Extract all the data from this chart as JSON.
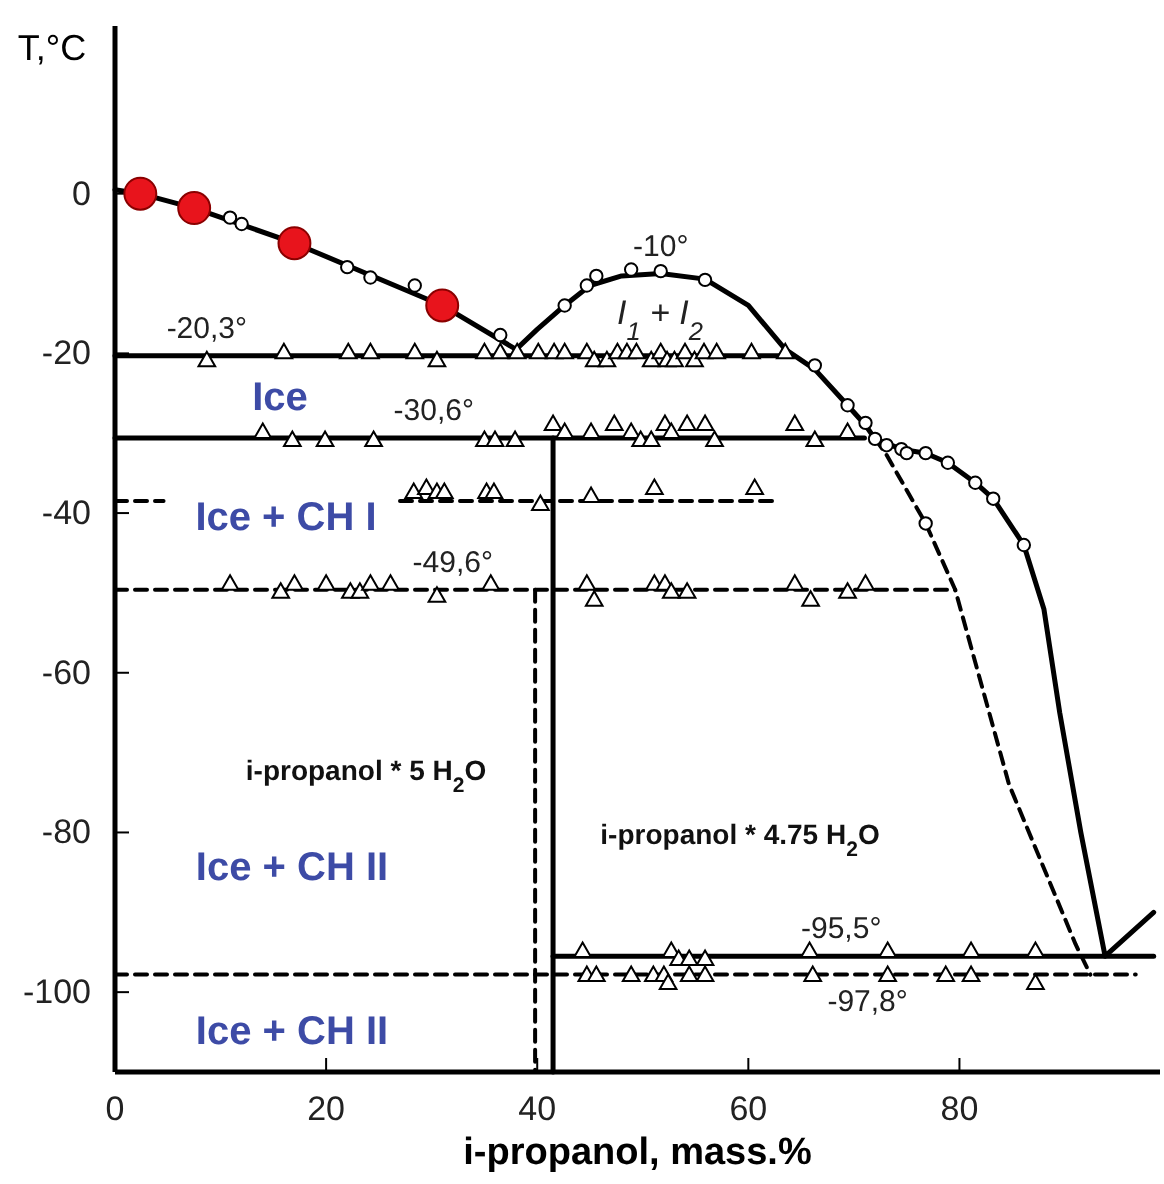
{
  "chart_data": {
    "type": "line",
    "xlabel": "i-propanol, mass.%",
    "ylabel": "T,°C",
    "xlim": [
      0,
      99
    ],
    "ylim": [
      -110,
      21
    ],
    "xticks": [
      0,
      20,
      40,
      60,
      80
    ],
    "yticks": [
      0,
      -20,
      -40,
      -60,
      -80,
      -100
    ],
    "grid": false,
    "series": [
      {
        "color": "#000000",
        "line_style": "solid",
        "x": [
          0,
          2.4,
          7.5,
          17,
          31,
          38
        ],
        "values": [
          0.5,
          0,
          -1.8,
          -6.2,
          -14,
          -19.5
        ]
      },
      {
        "type": "line",
        "color": "#000000",
        "line_style": "solid",
        "x": [
          38,
          40,
          42.6,
          45,
          48,
          51.7,
          55.9,
          60,
          63.5,
          66.3,
          69.4,
          71.1,
          72,
          74.5,
          76.8,
          78.9,
          81.5,
          83.2,
          86.1,
          88,
          89.5,
          91.5,
          93.8,
          98.4
        ],
        "values": [
          -19.5,
          -17,
          -14,
          -11.5,
          -10.3,
          -10,
          -10.7,
          -14,
          -19.5,
          -22,
          -26.5,
          -29,
          -30.7,
          -32,
          -32.5,
          -33.7,
          -36.2,
          -38.2,
          -44,
          -52,
          -65,
          -80,
          -95.5,
          -90
        ]
      },
      {
        "type": "line",
        "color": "#000000",
        "line_style": "dashed",
        "x": [
          72,
          73,
          76.8,
          79.6,
          84.7,
          91,
          92.4
        ],
        "values": [
          -30.7,
          -32.5,
          -41.3,
          -49.6,
          -74,
          -94,
          -97.8
        ]
      },
      {
        "type": "line",
        "color": "#000000",
        "line_style": "solid",
        "x": [
          0,
          63.5
        ],
        "values": [
          -20.3,
          -20.3
        ]
      },
      {
        "type": "line",
        "color": "#000000",
        "line_style": "solid",
        "x": [
          0,
          71
        ],
        "values": [
          -30.6,
          -30.6
        ]
      },
      {
        "type": "line",
        "color": "#000000",
        "line_style": "dashed",
        "x": [
          0,
          4.6,
          15,
          27,
          62.5
        ],
        "values": [
          -38.5,
          -38.5,
          null,
          -38.5,
          -38.5
        ]
      },
      {
        "type": "line",
        "color": "#000000",
        "line_style": "dashed",
        "x": [
          0,
          79.6
        ],
        "values": [
          -49.6,
          -49.6
        ]
      },
      {
        "type": "line",
        "color": "#000000",
        "line_style": "solid",
        "x": [
          41.5,
          98.4
        ],
        "values": [
          -95.5,
          -95.5
        ]
      },
      {
        "type": "line",
        "color": "#000000",
        "line_style": "dashed",
        "x": [
          0,
          96.7
        ],
        "values": [
          -97.8,
          -97.8
        ]
      },
      {
        "type": "line",
        "color": "#000000",
        "line_style": "dashed",
        "x": [
          39.8,
          39.8
        ],
        "values": [
          -49.6,
          -110
        ]
      },
      {
        "type": "line",
        "color": "#000000",
        "line_style": "solid",
        "x": [
          41.5,
          41.5
        ],
        "values": [
          -30.6,
          -110
        ]
      },
      {
        "type": "scatter",
        "color": "#ffffff",
        "marker": "triangle",
        "x": [
          8.7,
          16,
          22.1,
          24.2,
          28.4,
          30.5,
          35,
          36.5,
          38.1,
          40.1,
          41.6,
          42.6,
          44.7,
          45.4,
          46.6,
          47.6,
          48.5,
          49.4,
          50.8,
          51.7,
          52.3,
          53,
          54,
          54.9,
          55.8,
          57,
          60.3,
          63.5,
          14,
          16.8,
          19.9,
          24.5,
          35,
          36,
          37.9,
          41.5,
          42.6,
          45.1,
          47.3,
          48.9,
          49.8,
          50.8,
          52.1,
          52.7,
          54.2,
          55.9,
          56.8,
          64.4,
          66.3,
          69.4,
          28.3,
          29.5,
          30.5,
          31.2,
          35.2,
          35.9,
          40.3,
          45.1,
          51.1,
          60.6,
          10.9,
          15.7,
          17,
          20,
          22.3,
          23.2,
          24.2,
          26.1,
          30.5,
          35.6,
          44.7,
          45.4,
          51.1,
          52.1,
          52.7,
          54.2,
          64.4,
          65.9,
          69.4,
          71.1,
          44.3,
          52.7,
          53.4,
          54.4,
          55.9,
          65.8,
          73.2,
          81.1,
          87.2,
          44.7,
          45.6,
          48.9,
          51,
          52,
          52.4,
          54.4,
          55.9,
          66.1,
          73.2,
          78.7,
          81.1,
          87.2
        ],
        "values": [
          -21,
          -20,
          -20,
          -20,
          -20,
          -21,
          -20,
          -20,
          -20,
          -20,
          -20,
          -20,
          -20,
          -21,
          -21,
          -20,
          -20,
          -20,
          -21,
          -20,
          -21,
          -21,
          -20,
          -21,
          -20,
          -20,
          -20,
          -20,
          -30,
          -31,
          -31,
          -31,
          -31,
          -31,
          -31,
          -29,
          -30,
          -30,
          -29,
          -30,
          -31,
          -31,
          -29,
          -30,
          -29,
          -29,
          -31,
          -29,
          -31,
          -30,
          -37.5,
          -37,
          -37.5,
          -37.5,
          -37.5,
          -37.5,
          -39,
          -38,
          -37,
          -37,
          -49,
          -50,
          -49,
          -49,
          -50,
          -50,
          -49,
          -49,
          -50.5,
          -49,
          -49,
          -51,
          -49,
          -49,
          -50,
          -50,
          -49,
          -51,
          -50,
          -49,
          -95,
          -95,
          -96,
          -96,
          -96,
          -95,
          -95,
          -95,
          -95,
          -98,
          -98,
          -98,
          -98,
          -98,
          -99,
          -98,
          -98,
          -98,
          -98,
          -98,
          -98,
          -99
        ]
      },
      {
        "type": "scatter",
        "color": "#ffffff",
        "marker": "circle",
        "x": [
          10.9,
          12,
          22,
          24.2,
          28.4,
          36.5,
          42.6,
          44.7,
          45.6,
          48.9,
          51.7,
          55.9,
          66.3,
          69.4,
          71.1,
          72,
          73.1,
          74.5,
          75,
          76.8,
          78.9,
          81.5,
          83.2,
          86.1,
          76.8
        ],
        "values": [
          -3,
          -3.8,
          -9.2,
          -10.5,
          -11.5,
          -17.7,
          -14,
          -11.5,
          -10.3,
          -9.5,
          -9.7,
          -10.8,
          -21.5,
          -26.5,
          -28.7,
          -30.7,
          -31.5,
          -32,
          -32.5,
          -32.5,
          -33.7,
          -36.2,
          -38.2,
          -44,
          -41.3
        ]
      },
      {
        "type": "scatter",
        "color": "#e8141c",
        "marker": "circle",
        "x": [
          2.4,
          7.5,
          17,
          31
        ],
        "values": [
          0,
          -1.8,
          -6.2,
          -14
        ]
      }
    ],
    "annotations": [
      {
        "text": "-20,3°",
        "x": 8.7,
        "y": -20.3
      },
      {
        "text": "-30,6°",
        "x": 30.2,
        "y": -30.6
      },
      {
        "text": "-49,6°",
        "x": 32,
        "y": -49.6
      },
      {
        "text": "-10°",
        "x": 51.7,
        "y": -10
      },
      {
        "text": "-95,5°",
        "x": 68.8,
        "y": -95.5
      },
      {
        "text": "-97,8°",
        "x": 71.3,
        "y": -97.8
      },
      "I$_{1}$ + I$_{2}$",
      "Ice",
      "Ice + CH I",
      "Ice + CH II",
      "Ice + CH II",
      "i-propanol * 5 H$_{2}$O",
      "i-propanol * 4.75 H$_{2}$O"
    ]
  }
}
